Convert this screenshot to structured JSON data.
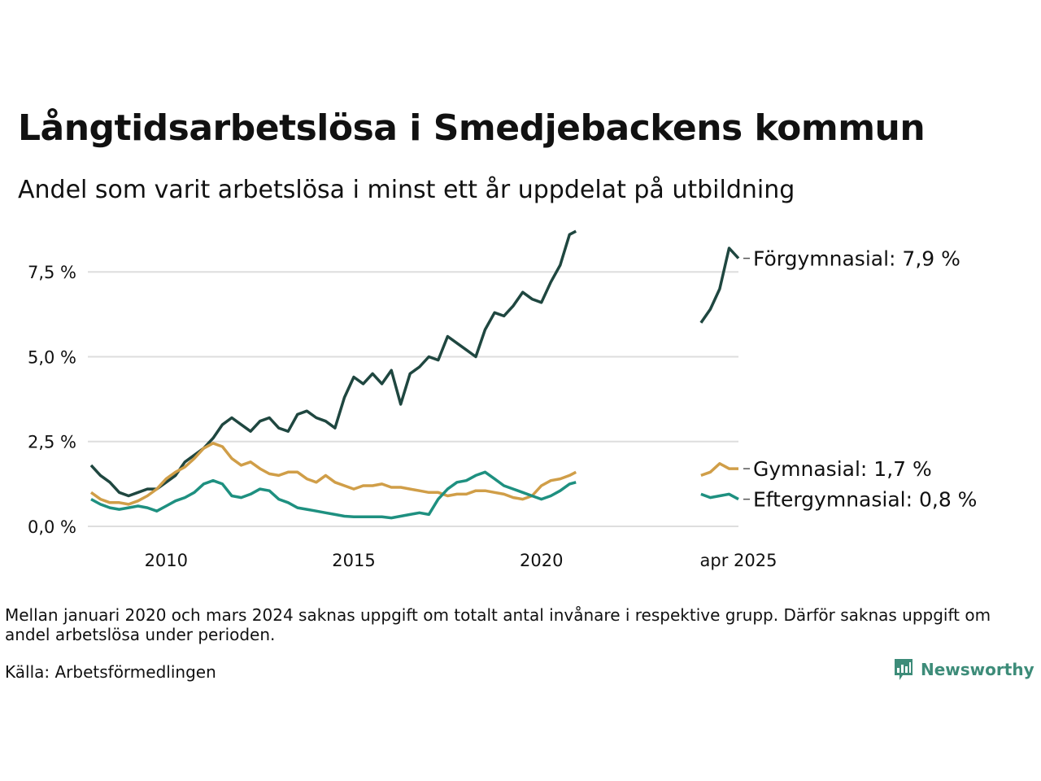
{
  "title": "Långtidsarbetslösa i Smedjebackens kommun",
  "subtitle": "Andel som varit arbetslösa i minst ett år uppdelat på utbildning",
  "note": "Mellan januari 2020 och mars 2024 saknas uppgift om totalt antal invånare i respektive grupp. Därför saknas uppgift om andel arbetslösa under perioden.",
  "source": "Källa: Arbetsförmedlingen",
  "brand": "Newsworthy",
  "colors": {
    "forgymnasial": "#1f4740",
    "gymnasial": "#d09e48",
    "eftergymnasial": "#1e9080",
    "grid": "#dedede",
    "brand": "#3d8c79"
  },
  "chart_data": {
    "type": "line",
    "y_ticks": [
      {
        "value": 0,
        "label": "0,0 %"
      },
      {
        "value": 2.5,
        "label": "2,5 %"
      },
      {
        "value": 5,
        "label": "5,0 %"
      },
      {
        "value": 7.5,
        "label": "7,5 %"
      }
    ],
    "x_ticks": [
      {
        "value": 2010,
        "label": "2010"
      },
      {
        "value": 2015,
        "label": "2015"
      },
      {
        "value": 2020,
        "label": "2020"
      },
      {
        "value": 2025.25,
        "label": "apr 2025"
      }
    ],
    "xlim": [
      2008.0,
      2025.25
    ],
    "ylim": [
      0,
      8.8
    ],
    "grid": true,
    "legend": "end-of-line labels",
    "series": [
      {
        "name": "Förgymnasial",
        "label": "Förgymnasial: 7,9 %",
        "color_key": "forgymnasial",
        "segments": [
          [
            [
              2008.0,
              1.8
            ],
            [
              2008.25,
              1.5
            ],
            [
              2008.5,
              1.3
            ],
            [
              2008.75,
              1.0
            ],
            [
              2009.0,
              0.9
            ],
            [
              2009.25,
              1.0
            ],
            [
              2009.5,
              1.1
            ],
            [
              2009.75,
              1.1
            ],
            [
              2010.0,
              1.3
            ],
            [
              2010.25,
              1.5
            ],
            [
              2010.5,
              1.9
            ],
            [
              2010.75,
              2.1
            ],
            [
              2011.0,
              2.3
            ],
            [
              2011.25,
              2.6
            ],
            [
              2011.5,
              3.0
            ],
            [
              2011.75,
              3.2
            ],
            [
              2012.0,
              3.0
            ],
            [
              2012.25,
              2.8
            ],
            [
              2012.5,
              3.1
            ],
            [
              2012.75,
              3.2
            ],
            [
              2013.0,
              2.9
            ],
            [
              2013.25,
              2.8
            ],
            [
              2013.5,
              3.3
            ],
            [
              2013.75,
              3.4
            ],
            [
              2014.0,
              3.2
            ],
            [
              2014.25,
              3.1
            ],
            [
              2014.5,
              2.9
            ],
            [
              2014.75,
              3.8
            ],
            [
              2015.0,
              4.4
            ],
            [
              2015.25,
              4.2
            ],
            [
              2015.5,
              4.5
            ],
            [
              2015.75,
              4.2
            ],
            [
              2016.0,
              4.6
            ],
            [
              2016.25,
              3.6
            ],
            [
              2016.5,
              4.5
            ],
            [
              2016.75,
              4.7
            ],
            [
              2017.0,
              5.0
            ],
            [
              2017.25,
              4.9
            ],
            [
              2017.5,
              5.6
            ],
            [
              2017.75,
              5.4
            ],
            [
              2018.0,
              5.2
            ],
            [
              2018.25,
              5.0
            ],
            [
              2018.5,
              5.8
            ],
            [
              2018.75,
              6.3
            ],
            [
              2019.0,
              6.2
            ],
            [
              2019.25,
              6.5
            ],
            [
              2019.5,
              6.9
            ],
            [
              2019.75,
              6.7
            ],
            [
              2020.0,
              6.6
            ],
            [
              2020.25,
              7.2
            ],
            [
              2020.5,
              7.7
            ],
            [
              2020.75,
              8.6
            ],
            [
              2020.92,
              8.7
            ]
          ],
          [
            [
              2024.25,
              6.0
            ],
            [
              2024.5,
              6.4
            ],
            [
              2024.75,
              7.0
            ],
            [
              2025.0,
              8.2
            ],
            [
              2025.25,
              7.9
            ]
          ]
        ]
      },
      {
        "name": "Gymnasial",
        "label": "Gymnasial: 1,7 %",
        "color_key": "gymnasial",
        "segments": [
          [
            [
              2008.0,
              1.0
            ],
            [
              2008.25,
              0.8
            ],
            [
              2008.5,
              0.7
            ],
            [
              2008.75,
              0.7
            ],
            [
              2009.0,
              0.65
            ],
            [
              2009.25,
              0.75
            ],
            [
              2009.5,
              0.9
            ],
            [
              2009.75,
              1.1
            ],
            [
              2010.0,
              1.4
            ],
            [
              2010.25,
              1.6
            ],
            [
              2010.5,
              1.75
            ],
            [
              2010.75,
              2.0
            ],
            [
              2011.0,
              2.3
            ],
            [
              2011.25,
              2.45
            ],
            [
              2011.5,
              2.35
            ],
            [
              2011.75,
              2.0
            ],
            [
              2012.0,
              1.8
            ],
            [
              2012.25,
              1.9
            ],
            [
              2012.5,
              1.7
            ],
            [
              2012.75,
              1.55
            ],
            [
              2013.0,
              1.5
            ],
            [
              2013.25,
              1.6
            ],
            [
              2013.5,
              1.6
            ],
            [
              2013.75,
              1.4
            ],
            [
              2014.0,
              1.3
            ],
            [
              2014.25,
              1.5
            ],
            [
              2014.5,
              1.3
            ],
            [
              2014.75,
              1.2
            ],
            [
              2015.0,
              1.1
            ],
            [
              2015.25,
              1.2
            ],
            [
              2015.5,
              1.2
            ],
            [
              2015.75,
              1.25
            ],
            [
              2016.0,
              1.15
            ],
            [
              2016.25,
              1.15
            ],
            [
              2016.5,
              1.1
            ],
            [
              2016.75,
              1.05
            ],
            [
              2017.0,
              1.0
            ],
            [
              2017.25,
              1.0
            ],
            [
              2017.5,
              0.9
            ],
            [
              2017.75,
              0.95
            ],
            [
              2018.0,
              0.95
            ],
            [
              2018.25,
              1.05
            ],
            [
              2018.5,
              1.05
            ],
            [
              2018.75,
              1.0
            ],
            [
              2019.0,
              0.95
            ],
            [
              2019.25,
              0.85
            ],
            [
              2019.5,
              0.8
            ],
            [
              2019.75,
              0.9
            ],
            [
              2020.0,
              1.2
            ],
            [
              2020.25,
              1.35
            ],
            [
              2020.5,
              1.4
            ],
            [
              2020.75,
              1.5
            ],
            [
              2020.92,
              1.6
            ]
          ],
          [
            [
              2024.25,
              1.5
            ],
            [
              2024.5,
              1.6
            ],
            [
              2024.75,
              1.85
            ],
            [
              2025.0,
              1.7
            ],
            [
              2025.25,
              1.7
            ]
          ]
        ]
      },
      {
        "name": "Eftergymnasial",
        "label": "Eftergymnasial: 0,8 %",
        "color_key": "eftergymnasial",
        "segments": [
          [
            [
              2008.0,
              0.8
            ],
            [
              2008.25,
              0.65
            ],
            [
              2008.5,
              0.55
            ],
            [
              2008.75,
              0.5
            ],
            [
              2009.0,
              0.55
            ],
            [
              2009.25,
              0.6
            ],
            [
              2009.5,
              0.55
            ],
            [
              2009.75,
              0.45
            ],
            [
              2010.0,
              0.6
            ],
            [
              2010.25,
              0.75
            ],
            [
              2010.5,
              0.85
            ],
            [
              2010.75,
              1.0
            ],
            [
              2011.0,
              1.25
            ],
            [
              2011.25,
              1.35
            ],
            [
              2011.5,
              1.25
            ],
            [
              2011.75,
              0.9
            ],
            [
              2012.0,
              0.85
            ],
            [
              2012.25,
              0.95
            ],
            [
              2012.5,
              1.1
            ],
            [
              2012.75,
              1.05
            ],
            [
              2013.0,
              0.8
            ],
            [
              2013.25,
              0.7
            ],
            [
              2013.5,
              0.55
            ],
            [
              2013.75,
              0.5
            ],
            [
              2014.0,
              0.45
            ],
            [
              2014.25,
              0.4
            ],
            [
              2014.5,
              0.35
            ],
            [
              2014.75,
              0.3
            ],
            [
              2015.0,
              0.28
            ],
            [
              2015.25,
              0.28
            ],
            [
              2015.5,
              0.28
            ],
            [
              2015.75,
              0.28
            ],
            [
              2016.0,
              0.25
            ],
            [
              2016.25,
              0.3
            ],
            [
              2016.5,
              0.35
            ],
            [
              2016.75,
              0.4
            ],
            [
              2017.0,
              0.35
            ],
            [
              2017.25,
              0.8
            ],
            [
              2017.5,
              1.1
            ],
            [
              2017.75,
              1.3
            ],
            [
              2018.0,
              1.35
            ],
            [
              2018.25,
              1.5
            ],
            [
              2018.5,
              1.6
            ],
            [
              2018.75,
              1.4
            ],
            [
              2019.0,
              1.2
            ],
            [
              2019.25,
              1.1
            ],
            [
              2019.5,
              1.0
            ],
            [
              2019.75,
              0.9
            ],
            [
              2020.0,
              0.8
            ],
            [
              2020.25,
              0.9
            ],
            [
              2020.5,
              1.05
            ],
            [
              2020.75,
              1.25
            ],
            [
              2020.92,
              1.3
            ]
          ],
          [
            [
              2024.25,
              0.95
            ],
            [
              2024.5,
              0.85
            ],
            [
              2024.75,
              0.9
            ],
            [
              2025.0,
              0.95
            ],
            [
              2025.25,
              0.8
            ]
          ]
        ]
      }
    ]
  }
}
